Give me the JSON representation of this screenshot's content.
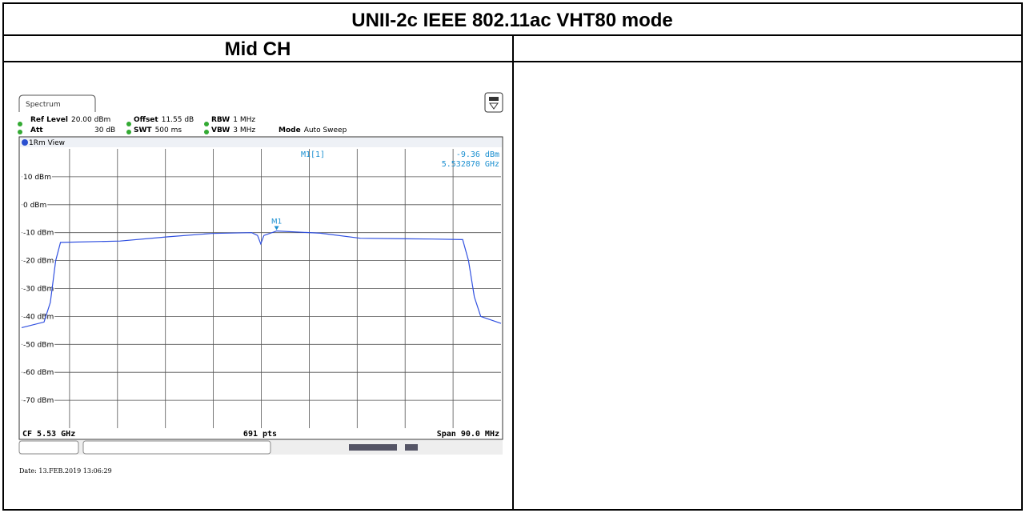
{
  "title": "UNII-2c IEEE 802.11ac VHT80 mode",
  "column_header": "Mid CH",
  "spectrum": {
    "tab": "Spectrum",
    "settings": [
      {
        "label": "Ref Level",
        "value": "20.00 dBm"
      },
      {
        "label": "Offset",
        "value": "11.55 dB"
      },
      {
        "label": "RBW",
        "value": "1 MHz"
      },
      {
        "label": "Att",
        "value": "30 dB"
      },
      {
        "label": "SWT",
        "value": "500 ms"
      },
      {
        "label": "VBW",
        "value": "3 MHz"
      },
      {
        "label": "Mode",
        "value": "Auto Sweep"
      }
    ],
    "view": "1Rm View",
    "ylim": [
      -80,
      20
    ],
    "yticks": [
      {
        "value": 10,
        "label": "10 dBm"
      },
      {
        "value": 0,
        "label": "0 dBm"
      },
      {
        "value": -10,
        "label": "-10 dBm"
      },
      {
        "value": -20,
        "label": "-20 dBm"
      },
      {
        "value": -30,
        "label": "-30 dBm"
      },
      {
        "value": -40,
        "label": "-40 dBm"
      },
      {
        "value": -50,
        "label": "-50 dBm"
      },
      {
        "value": -60,
        "label": "-60 dBm"
      },
      {
        "value": -70,
        "label": "-70 dBm"
      }
    ],
    "xlim": [
      5485,
      5575
    ],
    "xticks": [
      5494,
      5503,
      5512,
      5521,
      5530,
      5539,
      5548,
      5557,
      5566
    ],
    "trace": {
      "color": "#3050e0",
      "x": [
        5485,
        5489.2,
        5490.4,
        5491.4,
        5492.3,
        5503.5,
        5512.5,
        5520.7,
        5528.2,
        5529.3,
        5529.9,
        5530.5,
        5532.9,
        5541.1,
        5548.6,
        5562.1,
        5567.8,
        5568.9,
        5570,
        5571.2,
        5575
      ],
      "y": [
        -44,
        -42,
        -35,
        -20,
        -13.5,
        -13,
        -11.5,
        -10.3,
        -10,
        -11,
        -14,
        -11,
        -9.4,
        -10.2,
        -12,
        -12.3,
        -12.5,
        -20,
        -33,
        -40,
        -42.5
      ]
    },
    "marker": {
      "name": "M1[1]",
      "tag": "M1",
      "x": 5532.87,
      "y": -9.36,
      "y_label": "-9.36 dBm",
      "x_label": "5.532870 GHz"
    },
    "footer": {
      "center_freq": "CF 5.53 GHz",
      "points": "691 pts",
      "span": "Span 90.0 MHz"
    }
  },
  "date": "Date: 13.FEB.2019 13:06:29"
}
